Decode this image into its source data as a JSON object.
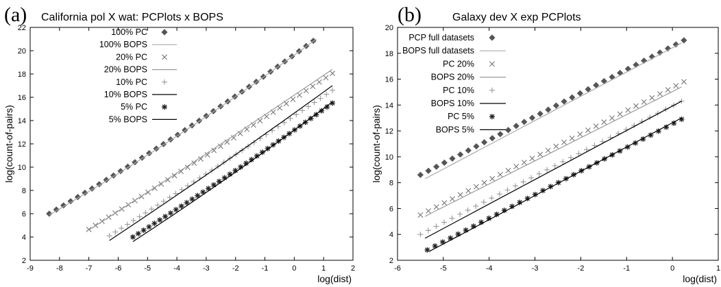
{
  "chart_data": [
    {
      "type": "scatter",
      "panel": "(a)",
      "title": "California pol X wat: PCPlots x BOPS",
      "xlabel": "log(dist)",
      "ylabel": "log(count-of-pairs)",
      "xlim": [
        -9,
        2
      ],
      "ylim": [
        2,
        22
      ],
      "xticks": [
        "-9",
        "-8",
        "-7",
        "-6",
        "-5",
        "-4",
        "-3",
        "-2",
        "-1",
        "0",
        "1",
        "2"
      ],
      "yticks": [
        "2",
        "4",
        "6",
        "8",
        "10",
        "12",
        "14",
        "16",
        "18",
        "20",
        "22"
      ],
      "legend_position": "top-left",
      "series": [
        {
          "name": "100% PC",
          "kind": "points",
          "marker": "diamond",
          "color": "#555555",
          "x": [
            -8.35,
            0.65
          ],
          "y": [
            6.0,
            20.85
          ],
          "n": 38,
          "bend": 0.45
        },
        {
          "name": "100% BOPS",
          "kind": "line",
          "color": "#aaaaaa",
          "x": [
            -8.35,
            0.75
          ],
          "y": [
            5.9,
            21.0
          ],
          "bend": 0.45
        },
        {
          "name": "20% PC",
          "kind": "points",
          "marker": "x",
          "color": "#777777",
          "x": [
            -7.0,
            1.3
          ],
          "y": [
            4.65,
            18.05
          ],
          "n": 38,
          "bend": 0.1
        },
        {
          "name": "20% BOPS",
          "kind": "line",
          "color": "#999999",
          "x": [
            -7.0,
            1.3
          ],
          "y": [
            4.6,
            18.4
          ],
          "bend": 0.1
        },
        {
          "name": "10% PC",
          "kind": "points",
          "marker": "plus",
          "color": "#999999",
          "x": [
            -6.3,
            1.3
          ],
          "y": [
            4.1,
            16.6
          ],
          "n": 38,
          "bend": 0.1
        },
        {
          "name": "10% BOPS",
          "kind": "line",
          "color": "#000000",
          "x": [
            -6.3,
            1.3
          ],
          "y": [
            3.7,
            17.0
          ],
          "bend": 0.15
        },
        {
          "name": "5%  PC",
          "kind": "points",
          "marker": "star",
          "color": "#222222",
          "x": [
            -5.5,
            1.3
          ],
          "y": [
            4.0,
            15.5
          ],
          "n": 38,
          "bend": 0.2
        },
        {
          "name": "5%  BOPS",
          "kind": "line",
          "color": "#000000",
          "x": [
            -5.5,
            1.3
          ],
          "y": [
            3.6,
            15.6
          ],
          "bend": 0.2
        }
      ]
    },
    {
      "type": "scatter",
      "panel": "(b)",
      "title": "Galaxy dev X exp PCPlots",
      "xlabel": "log(dist)",
      "ylabel": "log(count-of-pairs)",
      "xlim": [
        -6,
        1
      ],
      "ylim": [
        2,
        20
      ],
      "xticks": [
        "-6",
        "-5",
        "-4",
        "-3",
        "-2",
        "-1",
        "0",
        "1"
      ],
      "yticks": [
        "2",
        "4",
        "6",
        "8",
        "10",
        "12",
        "14",
        "16",
        "18",
        "20"
      ],
      "legend_position": "top-left",
      "series": [
        {
          "name": "PCP full datasets",
          "kind": "points",
          "marker": "diamond",
          "color": "#555555",
          "x": [
            -5.5,
            0.25
          ],
          "y": [
            8.6,
            19.0
          ],
          "n": 34,
          "bend": 0
        },
        {
          "name": "BOPS full datasets",
          "kind": "line",
          "color": "#aaaaaa",
          "x": [
            -5.4,
            0.2
          ],
          "y": [
            8.3,
            18.8
          ],
          "bend": 0
        },
        {
          "name": "PC 20%",
          "kind": "points",
          "marker": "x",
          "color": "#777777",
          "x": [
            -5.5,
            0.25
          ],
          "y": [
            5.5,
            15.8
          ],
          "n": 34,
          "bend": 0
        },
        {
          "name": "BOPS 20%",
          "kind": "line",
          "color": "#999999",
          "x": [
            -5.4,
            0.2
          ],
          "y": [
            5.4,
            15.4
          ],
          "bend": 0
        },
        {
          "name": "PC 10%",
          "kind": "points",
          "marker": "plus",
          "color": "#999999",
          "x": [
            -5.5,
            0.2
          ],
          "y": [
            4.0,
            14.3
          ],
          "n": 34,
          "bend": 0
        },
        {
          "name": "BOPS 10%",
          "kind": "line",
          "color": "#000000",
          "x": [
            -5.4,
            0.2
          ],
          "y": [
            3.7,
            14.3
          ],
          "bend": 0
        },
        {
          "name": "PC 5%",
          "kind": "points",
          "marker": "star",
          "color": "#222222",
          "x": [
            -5.35,
            0.2
          ],
          "y": [
            2.8,
            12.9
          ],
          "n": 34,
          "bend": 0
        },
        {
          "name": "BOPS 5%",
          "kind": "line",
          "color": "#000000",
          "x": [
            -5.3,
            0.2
          ],
          "y": [
            2.7,
            13.0
          ],
          "bend": 0
        }
      ]
    }
  ]
}
